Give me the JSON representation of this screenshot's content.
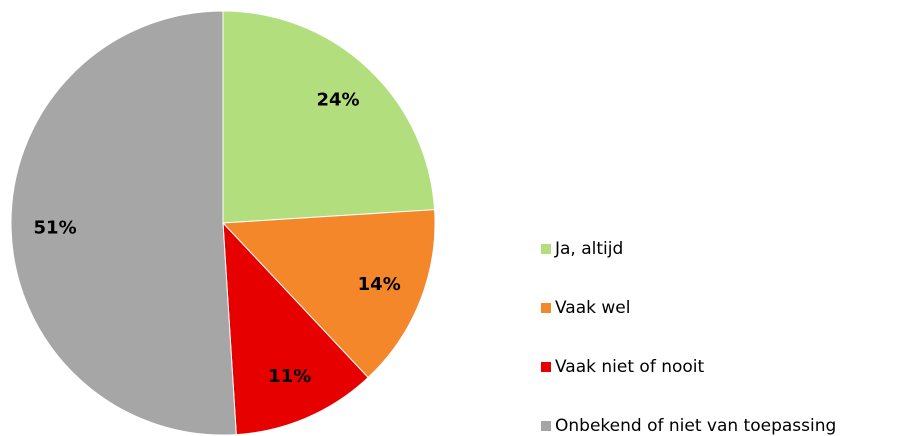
{
  "chart_data": {
    "type": "pie",
    "categories": [
      "Ja, altijd",
      "Vaak wel",
      "Vaak niet of nooit",
      "Onbekend of niet van toepassing"
    ],
    "values": [
      24,
      14,
      11,
      51
    ],
    "value_labels": [
      "24%",
      "14%",
      "11%",
      "51%"
    ],
    "colors": [
      "#b3de7e",
      "#f5872b",
      "#e60000",
      "#a6a6a6"
    ],
    "legend": "right"
  }
}
